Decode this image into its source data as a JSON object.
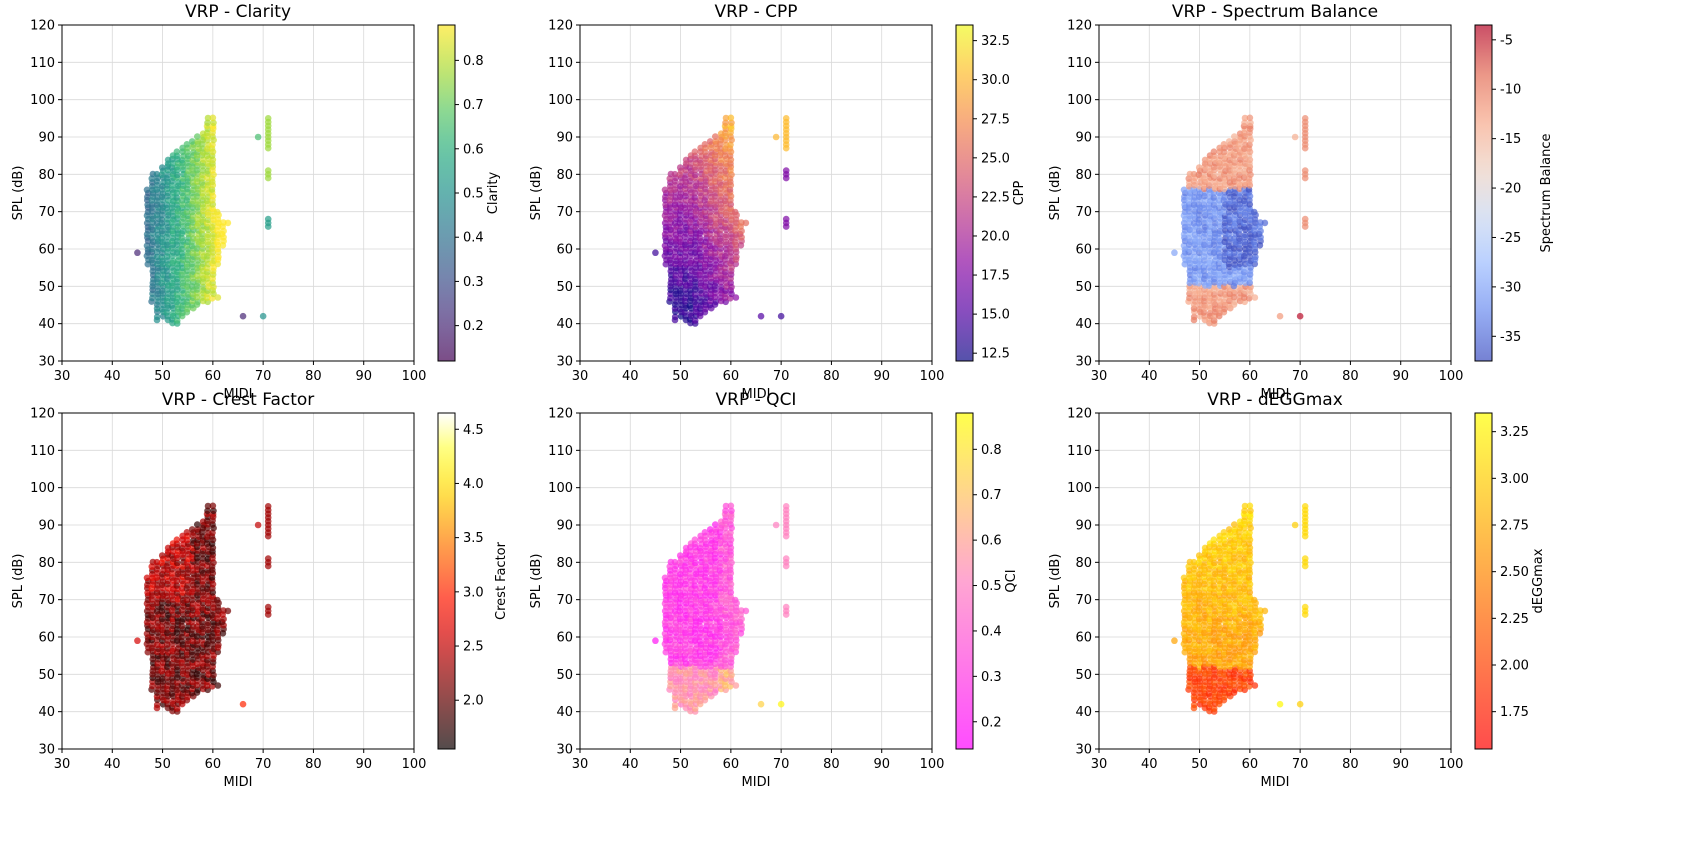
{
  "chart_data": [
    {
      "type": "scatter",
      "title": "VRP - Clarity",
      "xlabel": "MIDI",
      "ylabel": "SPL (dB)",
      "xlim": [
        30,
        100
      ],
      "ylim": [
        30,
        120
      ],
      "xticks": [
        "30",
        "40",
        "50",
        "60",
        "70",
        "80",
        "90",
        "100"
      ],
      "yticks": [
        "30",
        "40",
        "50",
        "60",
        "70",
        "80",
        "90",
        "100",
        "110",
        "120"
      ],
      "grid": true,
      "colorbar": {
        "label": "Clarity",
        "colormap": "viridis",
        "range": [
          0.12,
          0.88
        ],
        "ticks": [
          "0.2",
          "0.3",
          "0.4",
          "0.5",
          "0.6",
          "0.7",
          "0.8"
        ]
      },
      "pattern": "clarity",
      "outliers": [
        {
          "x": 45,
          "y": 59,
          "c": 0.2
        },
        {
          "x": 66,
          "y": 42,
          "c": 0.2
        },
        {
          "x": 70,
          "y": 42,
          "c": 0.5
        },
        {
          "x": 69,
          "y": 90,
          "c": 0.65
        }
      ]
    },
    {
      "type": "scatter",
      "title": "VRP - CPP",
      "xlabel": "MIDI",
      "ylabel": "SPL (dB)",
      "xlim": [
        30,
        100
      ],
      "ylim": [
        30,
        120
      ],
      "xticks": [
        "30",
        "40",
        "50",
        "60",
        "70",
        "80",
        "90",
        "100"
      ],
      "yticks": [
        "30",
        "40",
        "50",
        "60",
        "70",
        "80",
        "90",
        "100",
        "110",
        "120"
      ],
      "grid": true,
      "colorbar": {
        "label": "CPP",
        "colormap": "plasma",
        "range": [
          12,
          33.5
        ],
        "ticks": [
          "12.5",
          "15.0",
          "17.5",
          "20.0",
          "22.5",
          "25.0",
          "27.5",
          "30.0",
          "32.5"
        ]
      },
      "pattern": "cpp",
      "outliers": [
        {
          "x": 45,
          "y": 59,
          "c": 14
        },
        {
          "x": 66,
          "y": 42,
          "c": 15
        },
        {
          "x": 70,
          "y": 42,
          "c": 14
        },
        {
          "x": 69,
          "y": 90,
          "c": 30
        }
      ]
    },
    {
      "type": "scatter",
      "title": "VRP - Spectrum Balance",
      "xlabel": "MIDI",
      "ylabel": "SPL (dB)",
      "xlim": [
        30,
        100
      ],
      "ylim": [
        30,
        120
      ],
      "xticks": [
        "30",
        "40",
        "50",
        "60",
        "70",
        "80",
        "90",
        "100"
      ],
      "yticks": [
        "30",
        "40",
        "50",
        "60",
        "70",
        "80",
        "90",
        "100",
        "110",
        "120"
      ],
      "grid": true,
      "colorbar": {
        "label": "Spectrum Balance",
        "colormap": "coolwarm",
        "range": [
          -37.5,
          -3.5
        ],
        "ticks": [
          "-35",
          "-30",
          "-25",
          "-20",
          "-15",
          "-10",
          "-5"
        ]
      },
      "pattern": "spectrum",
      "outliers": [
        {
          "x": 45,
          "y": 59,
          "c": -30
        },
        {
          "x": 66,
          "y": 42,
          "c": -12
        },
        {
          "x": 70,
          "y": 42,
          "c": -4
        },
        {
          "x": 69,
          "y": 90,
          "c": -14
        }
      ]
    },
    {
      "type": "scatter",
      "title": "VRP - Crest Factor",
      "xlabel": "MIDI",
      "ylabel": "SPL (dB)",
      "xlim": [
        30,
        100
      ],
      "ylim": [
        30,
        120
      ],
      "xticks": [
        "30",
        "40",
        "50",
        "60",
        "70",
        "80",
        "90",
        "100"
      ],
      "yticks": [
        "30",
        "40",
        "50",
        "60",
        "70",
        "80",
        "90",
        "100",
        "110",
        "120"
      ],
      "grid": true,
      "colorbar": {
        "label": "Crest Factor",
        "colormap": "hot",
        "range": [
          1.55,
          4.65
        ],
        "ticks": [
          "2.0",
          "2.5",
          "3.0",
          "3.5",
          "4.0",
          "4.5"
        ]
      },
      "pattern": "crest",
      "outliers": [
        {
          "x": 45,
          "y": 59,
          "c": 2.6
        },
        {
          "x": 66,
          "y": 42,
          "c": 3.0
        },
        {
          "x": 69,
          "y": 90,
          "c": 2.5
        }
      ]
    },
    {
      "type": "scatter",
      "title": "VRP - QCI",
      "xlabel": "MIDI",
      "ylabel": "SPL (dB)",
      "xlim": [
        30,
        100
      ],
      "ylim": [
        30,
        120
      ],
      "xticks": [
        "30",
        "40",
        "50",
        "60",
        "70",
        "80",
        "90",
        "100"
      ],
      "yticks": [
        "30",
        "40",
        "50",
        "60",
        "70",
        "80",
        "90",
        "100",
        "110",
        "120"
      ],
      "grid": true,
      "colorbar": {
        "label": "QCI",
        "colormap": "spring",
        "range": [
          0.14,
          0.88
        ],
        "ticks": [
          "0.2",
          "0.3",
          "0.4",
          "0.5",
          "0.6",
          "0.7",
          "0.8"
        ]
      },
      "pattern": "qci",
      "outliers": [
        {
          "x": 45,
          "y": 59,
          "c": 0.2
        },
        {
          "x": 66,
          "y": 42,
          "c": 0.75
        },
        {
          "x": 70,
          "y": 42,
          "c": 0.85
        },
        {
          "x": 69,
          "y": 90,
          "c": 0.5
        }
      ]
    },
    {
      "type": "scatter",
      "title": "VRP - dEGGmax",
      "xlabel": "MIDI",
      "ylabel": "SPL (dB)",
      "xlim": [
        30,
        100
      ],
      "ylim": [
        30,
        120
      ],
      "xticks": [
        "30",
        "40",
        "50",
        "60",
        "70",
        "80",
        "90",
        "100"
      ],
      "yticks": [
        "30",
        "40",
        "50",
        "60",
        "70",
        "80",
        "90",
        "100",
        "110",
        "120"
      ],
      "grid": true,
      "colorbar": {
        "label": "dEGGmax",
        "colormap": "autumn",
        "range": [
          1.55,
          3.35
        ],
        "ticks": [
          "1.75",
          "2.00",
          "2.25",
          "2.50",
          "2.75",
          "3.00",
          "3.25"
        ]
      },
      "pattern": "degg",
      "outliers": [
        {
          "x": 45,
          "y": 59,
          "c": 2.7
        },
        {
          "x": 66,
          "y": 42,
          "c": 3.3
        },
        {
          "x": 70,
          "y": 42,
          "c": 3.0
        },
        {
          "x": 69,
          "y": 90,
          "c": 3.0
        }
      ]
    }
  ]
}
